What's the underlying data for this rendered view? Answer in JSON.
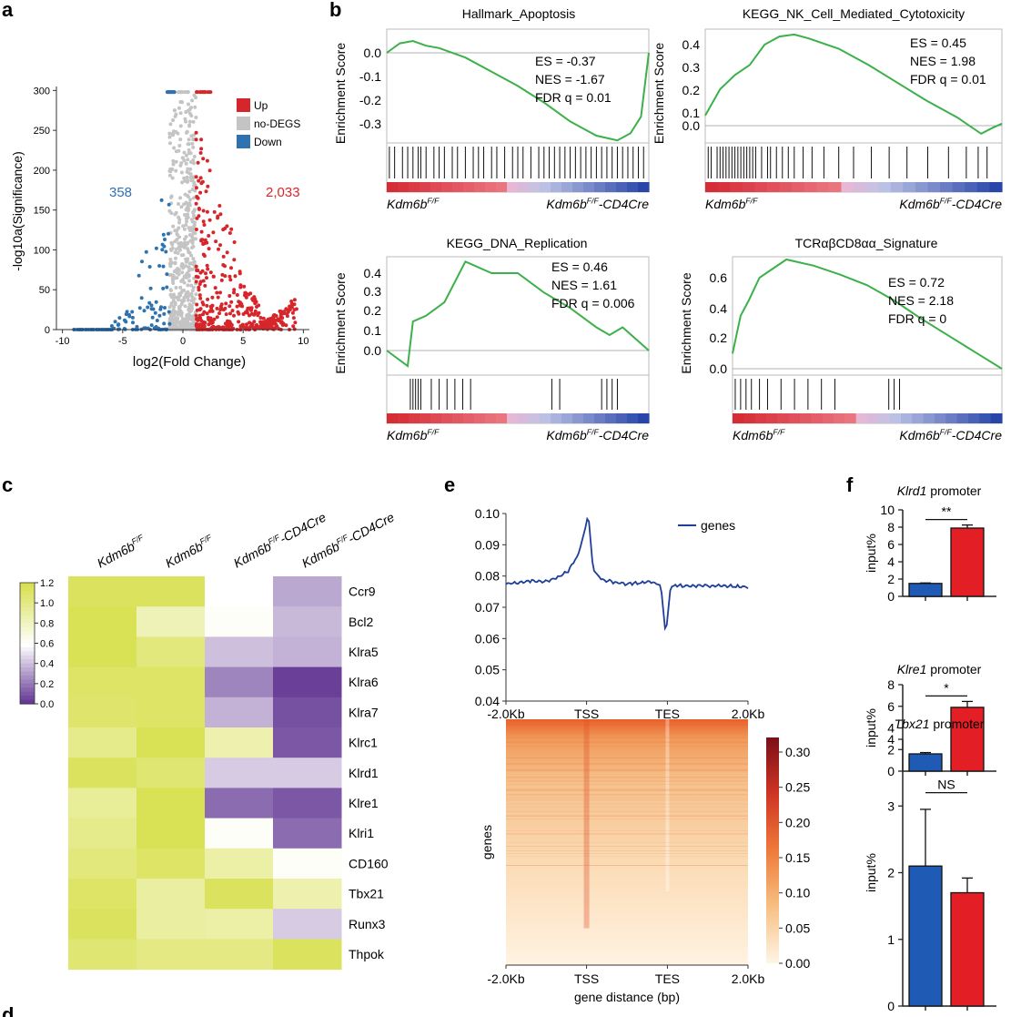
{
  "panels": {
    "a": "a",
    "b": "b",
    "c": "c",
    "d": "d",
    "e": "e",
    "f": "f"
  },
  "colors": {
    "up": "#d7262b",
    "nodegs": "#c4c4c4",
    "down": "#2f72b0",
    "gsea_line": "#3cb04a",
    "bar_blue": "#1f5bb5",
    "bar_red": "#e31e24",
    "heat_high": "#d8e04f",
    "heat_mid": "#ffffff",
    "heat_low": "#5b2d8e",
    "profile_line": "#1f3e9a"
  },
  "volcano": {
    "legend": [
      "Up",
      "no-DEGS",
      "Down"
    ],
    "count_down": "358",
    "count_up": "2,033",
    "xlabel": "log2(Fold Change)",
    "ylabel": "-log10a(Significance)",
    "xticks": [
      "-10",
      "-5",
      "0",
      "5",
      "10"
    ],
    "yticks": [
      "0",
      "50",
      "100",
      "150",
      "200",
      "250",
      "300"
    ]
  },
  "gsea": {
    "ylabel": "Enrichment Score",
    "left_group": "Kdm6b",
    "left_sup": "F/F",
    "right_group": "Kdm6b",
    "right_sup": "F/F",
    "right_suffix": "-CD4Cre",
    "plots": [
      {
        "title": "Hallmark_Apoptosis",
        "es": "ES = -0.37",
        "nes": "NES = -1.67",
        "fdr": "FDR q = 0.01",
        "yticks": [
          "0.0",
          "-0.1",
          "-0.2",
          "-0.3"
        ]
      },
      {
        "title": "KEGG_NK_Cell_Mediated_Cytotoxicity",
        "es": "ES = 0.45",
        "nes": "NES = 1.98",
        "fdr": "FDR q = 0.01",
        "yticks": [
          "0.4",
          "0.3",
          "0.2",
          "0.1",
          "0.0"
        ]
      },
      {
        "title": "KEGG_DNA_Replication",
        "es": "ES = 0.46",
        "nes": "NES = 1.61",
        "fdr": "FDR q = 0.006",
        "yticks": [
          "0.4",
          "0.3",
          "0.2",
          "0.1",
          "0.0"
        ]
      },
      {
        "title": "TCRαβCD8αα_Signature",
        "es": "ES = 0.72",
        "nes": "NES = 2.18",
        "fdr": "FDR q = 0",
        "yticks": [
          "0.6",
          "0.4",
          "0.2",
          "0.0"
        ]
      }
    ]
  },
  "heatmap": {
    "columns": [
      {
        "base": "Kdm6b",
        "sup": "F/F",
        "suffix": ""
      },
      {
        "base": "Kdm6b",
        "sup": "F/F",
        "suffix": ""
      },
      {
        "base": "Kdm6b",
        "sup": "F/F",
        "suffix": "-CD4Cre"
      },
      {
        "base": "Kdm6b",
        "sup": "F/F",
        "suffix": "-CD4Cre"
      }
    ],
    "rows": [
      "Ccr9",
      "Bcl2",
      "Klra5",
      "Klra6",
      "Klra7",
      "Klrc1",
      "Klrd1",
      "Klre1",
      "Klri1",
      "CD160",
      "Tbx21",
      "Runx3",
      "Thpok"
    ],
    "scale_ticks": [
      "1.2",
      "1.0",
      "0.8",
      "0.6",
      "0.4",
      "0.2",
      "0.0"
    ]
  },
  "profile": {
    "legend": "genes",
    "yticks": [
      "0.10",
      "0.09",
      "0.08",
      "0.07",
      "0.06",
      "0.05",
      "0.04"
    ],
    "xticks": [
      "-2.0Kb",
      "TSS",
      "TES",
      "2.0Kb"
    ],
    "heat_ylabel": "genes",
    "heat_xlabel": "gene distance (bp)",
    "cbar_ticks": [
      "0.30",
      "0.25",
      "0.20",
      "0.15",
      "0.10",
      "0.05",
      "0.00"
    ]
  },
  "chart_data": [
    {
      "type": "scatter",
      "title": "",
      "xlabel": "log2(Fold Change)",
      "ylabel": "-log10a(Significance)",
      "xlim": [
        -10.5,
        10.5
      ],
      "ylim": [
        0,
        305
      ],
      "series": [
        {
          "name": "Up",
          "count": "2,033"
        },
        {
          "name": "no-DEGS"
        },
        {
          "name": "Down",
          "count": "358"
        }
      ],
      "legend": "top-right"
    },
    {
      "type": "line",
      "title": "Hallmark_Apoptosis",
      "ylabel": "Enrichment Score",
      "ylim": [
        -0.4,
        0.05
      ],
      "x": [
        0,
        0.05,
        0.1,
        0.15,
        0.2,
        0.3,
        0.4,
        0.5,
        0.6,
        0.7,
        0.8,
        0.88,
        0.93,
        0.97,
        1.0
      ],
      "values": [
        0,
        0.04,
        0.05,
        0.03,
        0.02,
        -0.02,
        -0.08,
        -0.14,
        -0.21,
        -0.29,
        -0.35,
        -0.37,
        -0.34,
        -0.27,
        0
      ]
    },
    {
      "type": "line",
      "title": "KEGG_NK_Cell_Mediated_Cytotoxicity",
      "ylabel": "Enrichment Score",
      "ylim": [
        -0.1,
        0.47
      ],
      "x": [
        0,
        0.05,
        0.1,
        0.15,
        0.2,
        0.25,
        0.3,
        0.35,
        0.45,
        0.55,
        0.65,
        0.75,
        0.85,
        0.93,
        0.97,
        1.0
      ],
      "values": [
        0.05,
        0.18,
        0.25,
        0.3,
        0.4,
        0.44,
        0.45,
        0.43,
        0.38,
        0.3,
        0.21,
        0.12,
        0.04,
        -0.04,
        -0.01,
        0.01
      ]
    },
    {
      "type": "line",
      "title": "KEGG_DNA_Replication",
      "ylabel": "Enrichment Score",
      "ylim": [
        -0.1,
        0.5
      ],
      "x": [
        0,
        0.08,
        0.1,
        0.15,
        0.22,
        0.3,
        0.4,
        0.5,
        0.6,
        0.7,
        0.8,
        0.85,
        0.9,
        1.0
      ],
      "values": [
        0,
        -0.08,
        0.15,
        0.18,
        0.25,
        0.46,
        0.4,
        0.4,
        0.3,
        0.22,
        0.12,
        0.08,
        0.12,
        0
      ]
    },
    {
      "type": "line",
      "title": "TCRαβCD8αα_Signature",
      "ylabel": "Enrichment Score",
      "ylim": [
        -0.05,
        0.75
      ],
      "x": [
        0,
        0.03,
        0.06,
        0.1,
        0.15,
        0.2,
        0.3,
        0.4,
        0.5,
        0.6,
        0.7,
        0.8,
        0.9,
        1.0
      ],
      "values": [
        0.1,
        0.35,
        0.45,
        0.6,
        0.66,
        0.72,
        0.68,
        0.62,
        0.55,
        0.45,
        0.33,
        0.22,
        0.11,
        0
      ]
    },
    {
      "type": "heatmap",
      "rows": [
        "Ccr9",
        "Bcl2",
        "Klra5",
        "Klra6",
        "Klra7",
        "Klrc1",
        "Klrd1",
        "Klre1",
        "Klri1",
        "CD160",
        "Tbx21",
        "Runx3",
        "Thpok"
      ],
      "values": [
        [
          1.15,
          1.15,
          0.6,
          0.35
        ],
        [
          1.18,
          0.85,
          0.62,
          0.4
        ],
        [
          1.18,
          1.05,
          0.42,
          0.38
        ],
        [
          1.12,
          1.12,
          0.25,
          0.05
        ],
        [
          1.1,
          1.12,
          0.38,
          0.1
        ],
        [
          1.0,
          1.18,
          0.88,
          0.12
        ],
        [
          1.15,
          1.08,
          0.45,
          0.45
        ],
        [
          0.95,
          1.18,
          0.18,
          0.12
        ],
        [
          1.0,
          1.18,
          0.62,
          0.18
        ],
        [
          1.05,
          1.12,
          0.9,
          0.62
        ],
        [
          1.12,
          0.92,
          1.15,
          0.88
        ],
        [
          1.15,
          0.92,
          0.9,
          0.45
        ],
        [
          1.08,
          1.02,
          1.02,
          1.15
        ]
      ],
      "vlim": [
        0,
        1.2
      ]
    },
    {
      "type": "line",
      "series": [
        {
          "name": "genes"
        }
      ],
      "ylim": [
        0.04,
        0.1
      ],
      "x_labels": [
        "-2.0Kb",
        "TSS",
        "TES",
        "2.0Kb"
      ],
      "x": [
        0,
        0.05,
        0.1,
        0.15,
        0.2,
        0.25,
        0.3,
        0.33,
        0.34,
        0.36,
        0.4,
        0.5,
        0.6,
        0.64,
        0.66,
        0.68,
        0.7,
        0.8,
        0.9,
        1.0
      ],
      "values": [
        0.0775,
        0.0778,
        0.0785,
        0.078,
        0.079,
        0.081,
        0.087,
        0.096,
        0.1,
        0.082,
        0.0785,
        0.0775,
        0.078,
        0.077,
        0.061,
        0.0765,
        0.077,
        0.0768,
        0.0768,
        0.0764
      ]
    },
    {
      "type": "heatmap",
      "xlabel": "gene distance (bp)",
      "ylabel": "genes",
      "x_labels": [
        "-2.0Kb",
        "TSS",
        "TES",
        "2.0Kb"
      ],
      "vlim": [
        0,
        0.3
      ]
    },
    {
      "type": "bar",
      "title": "Klrd1 promoter",
      "title_italic": "Klrd1",
      "title_rest": " promoter",
      "ylabel": "input%",
      "ylim": [
        0,
        10
      ],
      "yticks": [
        "0",
        "2",
        "4",
        "6",
        "8",
        "10"
      ],
      "values": [
        1.5,
        7.9
      ],
      "errors": [
        0.05,
        0.35
      ],
      "significance": "**"
    },
    {
      "type": "bar",
      "title": "Klre1 promoter",
      "title_italic": "Klre1",
      "title_rest": " promoter",
      "ylabel": "input%",
      "ylim": [
        0,
        8
      ],
      "yticks": [
        "0",
        "2",
        "4",
        "6",
        "8"
      ],
      "values": [
        1.6,
        5.9
      ],
      "errors": [
        0.12,
        0.55
      ],
      "significance": "*"
    },
    {
      "type": "bar",
      "title": "Tbx21 promoter",
      "title_italic": "Tbx21",
      "title_rest": " promoter",
      "ylabel": "input%",
      "ylim": [
        0,
        4
      ],
      "yticks": [
        "0",
        "1",
        "2",
        "3",
        "4"
      ],
      "values": [
        2.1,
        1.7
      ],
      "errors": [
        0.85,
        0.22
      ],
      "significance": "NS"
    }
  ]
}
